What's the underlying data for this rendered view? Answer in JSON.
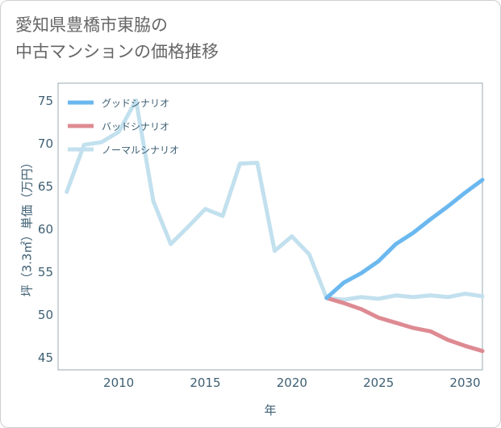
{
  "title_line1": "愛知県豊橋市東脇の",
  "title_line2": "中古マンションの価格推移",
  "chart_data": {
    "type": "line",
    "xlabel": "年",
    "ylabel": "坪（3.3㎡）単価（万円）",
    "xlim": [
      2006.5,
      2031
    ],
    "ylim": [
      43.5,
      77
    ],
    "xticks": [
      2010,
      2015,
      2020,
      2025,
      2030
    ],
    "yticks": [
      45,
      50,
      55,
      60,
      65,
      70,
      75
    ],
    "grid": true,
    "legend_position": "top-left",
    "series": [
      {
        "name": "グッドシナリオ",
        "color": "#6bb8ef",
        "x": [
          2022,
          2023,
          2024,
          2025,
          2026,
          2027,
          2028,
          2029,
          2030,
          2031
        ],
        "y": [
          51.9,
          53.7,
          54.8,
          56.2,
          58.2,
          59.5,
          61.1,
          62.6,
          64.2,
          65.7
        ]
      },
      {
        "name": "バッドシナリオ",
        "color": "#de8a92",
        "x": [
          2022,
          2023,
          2024,
          2025,
          2026,
          2027,
          2028,
          2029,
          2030,
          2031
        ],
        "y": [
          51.9,
          51.3,
          50.6,
          49.6,
          49.0,
          48.4,
          48.0,
          47.0,
          46.3,
          45.7
        ]
      },
      {
        "name": "ノーマルシナリオ",
        "color": "#c2e0ee",
        "x": [
          2007,
          2008,
          2009,
          2010,
          2011,
          2012,
          2013,
          2014,
          2015,
          2016,
          2017,
          2018,
          2019,
          2020,
          2021,
          2022,
          2023,
          2024,
          2025,
          2026,
          2027,
          2028,
          2029,
          2030,
          2031
        ],
        "y": [
          64.3,
          69.8,
          70.1,
          71.3,
          75.0,
          63.2,
          58.2,
          60.2,
          62.3,
          61.5,
          67.6,
          67.7,
          57.4,
          59.1,
          57.0,
          51.9,
          51.7,
          52.0,
          51.8,
          52.2,
          52.0,
          52.2,
          52.0,
          52.4,
          52.1
        ]
      }
    ]
  }
}
